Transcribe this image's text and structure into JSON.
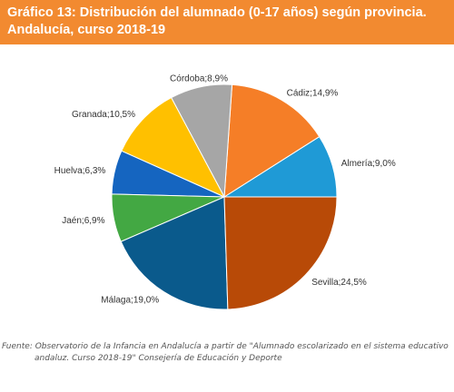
{
  "header": {
    "title_line1": "Gráfico 13: Distribución del alumnado (0-17 años) según provincia.",
    "title_line2": "Andalucía, curso 2018-19"
  },
  "chart_data": {
    "type": "pie",
    "categories": [
      "Almería",
      "Cádiz",
      "Córdoba",
      "Granada",
      "Huelva",
      "Jaén",
      "Málaga",
      "Sevilla"
    ],
    "values": [
      9.0,
      14.9,
      8.9,
      10.5,
      6.3,
      6.9,
      19.0,
      24.5
    ],
    "data_labels": [
      "Almería;9,0%",
      "Cádiz;14,9%",
      "Córdoba;8,9%",
      "Granada;10,5%",
      "Huelva;6,3%",
      "Jaén;6,9%",
      "Málaga;19,0%",
      "Sevilla;24,5%"
    ],
    "colors": [
      "#1f9ad6",
      "#f57e27",
      "#a6a6a6",
      "#ffc000",
      "#1565c0",
      "#43a843",
      "#0a5a8c",
      "#b84a07"
    ],
    "legend": "none"
  },
  "source": {
    "line1": "Fuente: Observatorio de la Infancia en Andalucía a partir de \"Alumnado escolarizado en el sistema educativo",
    "line2": "andaluz. Curso 2018-19\" Consejería de Educación y Deporte"
  }
}
